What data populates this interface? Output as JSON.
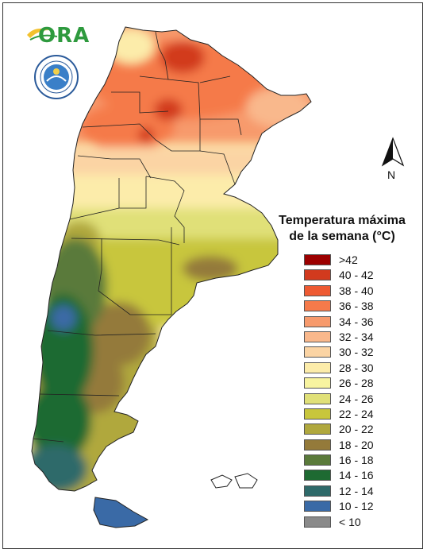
{
  "branding": {
    "ora_logo_text": "ORA",
    "seal_icon": "smn-seal-icon"
  },
  "compass": {
    "label": "N",
    "icon": "north-arrow-icon"
  },
  "legend": {
    "title_line1": "Temperatura máxima",
    "title_line2": "de la semana (°C)",
    "items": [
      {
        "label": ">42",
        "color": "#9c0000"
      },
      {
        "label": "40 - 42",
        "color": "#d23a1e"
      },
      {
        "label": "38 - 40",
        "color": "#ee5a32"
      },
      {
        "label": "36 - 38",
        "color": "#f57a4a"
      },
      {
        "label": "34 - 36",
        "color": "#f79a6c"
      },
      {
        "label": "32 - 34",
        "color": "#f9b88c"
      },
      {
        "label": "30 - 32",
        "color": "#fbd4a4"
      },
      {
        "label": "28 - 30",
        "color": "#fcecaa"
      },
      {
        "label": "26 - 28",
        "color": "#f8f4a0"
      },
      {
        "label": "24 - 26",
        "color": "#e0e078"
      },
      {
        "label": "22 - 24",
        "color": "#c8c63c"
      },
      {
        "label": "20 - 22",
        "color": "#b0a83e"
      },
      {
        "label": "18 - 20",
        "color": "#947a3a"
      },
      {
        "label": "16 - 18",
        "color": "#5a7a3a"
      },
      {
        "label": "14 - 16",
        "color": "#1e6a32"
      },
      {
        "label": "12 - 14",
        "color": "#2e6a6a"
      },
      {
        "label": "10 - 12",
        "color": "#3a6aa6"
      },
      {
        "label": "< 10",
        "color": "#8a8a8a"
      }
    ]
  }
}
